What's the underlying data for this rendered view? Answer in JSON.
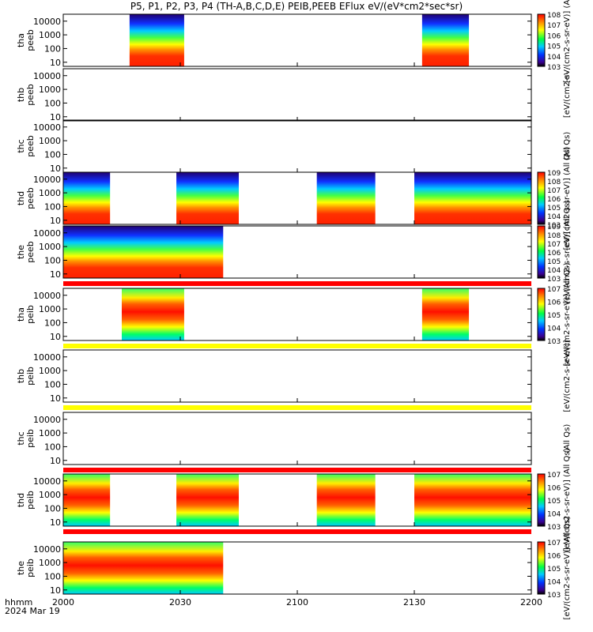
{
  "chart_data": {
    "type": "heatmap",
    "title": "P5, P1, P2, P3, P4 (TH-A,B,C,D,E) PEIB,PEEB EFlux eV/(eV*cm2*sec*sr)",
    "x_axis": {
      "label_line1": "hhmm",
      "label_line2": "2024 Mar 19",
      "ticks": [
        "2000",
        "2030",
        "2100",
        "2130",
        "2200"
      ],
      "range_minutes": [
        0,
        120
      ]
    },
    "y_axis": {
      "scale": "log",
      "ticks": [
        "10",
        "100",
        "1000",
        "10000"
      ],
      "range": [
        5,
        32000
      ]
    },
    "panels": [
      {
        "probe": "tha",
        "product": "peeb",
        "bands": [
          {
            "start": 17,
            "end": 31
          },
          {
            "start": 92,
            "end": 104
          }
        ],
        "cmax": 8,
        "cmin": 3,
        "bar_label": "[eV/(cm2-s-sr-eV)] (Al"
      },
      {
        "probe": "thb",
        "product": "peeb",
        "bands": [],
        "cmax": null,
        "cmin": null,
        "bar_label": "[eV/(cm2-s-"
      },
      {
        "probe": "thc",
        "product": "peeb",
        "bands": [],
        "cmax": null,
        "cmin": null,
        "bar_label": "(All Qs)"
      },
      {
        "probe": "thd",
        "product": "peeb",
        "bands": [
          {
            "start": 0,
            "end": 12
          },
          {
            "start": 29,
            "end": 45
          },
          {
            "start": 65,
            "end": 80
          },
          {
            "start": 90,
            "end": 120
          }
        ],
        "cmax": 9,
        "cmin": 3,
        "bar_label": "[eV/(cm2-s-sr-eV)] (All Qs)"
      },
      {
        "probe": "the",
        "product": "peeb",
        "bands": [
          {
            "start": 0,
            "end": 41
          }
        ],
        "cmax": 9,
        "cmin": 3,
        "bar_label": "[eV/(cm2-s-sr-eV)] (All Qs)"
      },
      {
        "probe": "tha",
        "product": "peib",
        "bands": [
          {
            "start": 15,
            "end": 31
          },
          {
            "start": 92,
            "end": 104
          }
        ],
        "cmax": 7,
        "cmin": 3,
        "bar_label": "[eV/(cm2-s-sr-eV)] (All Qs)"
      },
      {
        "probe": "thb",
        "product": "peib",
        "bands": [],
        "cmax": null,
        "cmin": null,
        "bar_label": "[eV/(cm2-s-sr-eV)]"
      },
      {
        "probe": "thc",
        "product": "peib",
        "bands": [],
        "cmax": null,
        "cmin": null,
        "bar_label": "(All Qs)"
      },
      {
        "probe": "thd",
        "product": "peib",
        "bands": [
          {
            "start": 0,
            "end": 12
          },
          {
            "start": 29,
            "end": 45
          },
          {
            "start": 65,
            "end": 80
          },
          {
            "start": 90,
            "end": 120
          }
        ],
        "cmax": 7,
        "cmin": 3,
        "bar_label": "[eV/(cm2-s-sr-eV)] (All Qs)"
      },
      {
        "probe": "the",
        "product": "peib",
        "bands": [
          {
            "start": 0,
            "end": 41
          }
        ],
        "cmax": 7,
        "cmin": 3,
        "bar_label": "[eV/(cm2-s-sr-eV)] (All Qs)"
      }
    ],
    "separator_strips": [
      {
        "after_panel": 4,
        "color": "#ff0000"
      },
      {
        "after_panel": 5,
        "color": "#ffff00"
      },
      {
        "after_panel": 6,
        "color": "#ffff00"
      },
      {
        "after_panel": 7,
        "color": "#ff0000"
      },
      {
        "after_panel": 8,
        "color": "#ff0000"
      }
    ],
    "colors": {
      "high": "#ff0000",
      "mid_high": "#ffff00",
      "mid": "#00ff66",
      "mid_low": "#00aaff",
      "low": "#2000a0",
      "lowest": "#000000"
    }
  }
}
